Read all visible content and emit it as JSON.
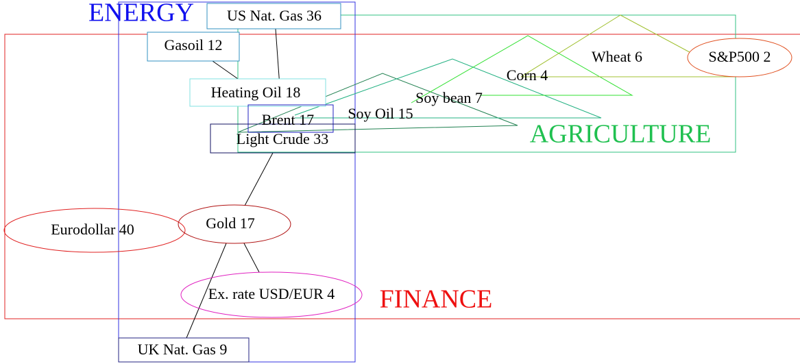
{
  "clusters": [
    {
      "label": "ENERGY"
    },
    {
      "label": "AGRICULTURE"
    },
    {
      "label": "FINANCE"
    }
  ],
  "nodes": [
    {
      "label": "US Nat. Gas 36"
    },
    {
      "label": "Gasoil 12"
    },
    {
      "label": "Heating Oil 18"
    },
    {
      "label": "Brent 17"
    },
    {
      "label": "Light Crude  33"
    },
    {
      "label": "Soy Oil 15"
    },
    {
      "label": "Soy bean 7"
    },
    {
      "label": "Corn 4"
    },
    {
      "label": "Wheat 6"
    },
    {
      "label": "S&P500 2"
    },
    {
      "label": "Eurodollar 40"
    },
    {
      "label": "Gold 17"
    },
    {
      "label": "Ex. rate USD/EUR 4"
    },
    {
      "label": "UK Nat. Gas 9"
    }
  ]
}
